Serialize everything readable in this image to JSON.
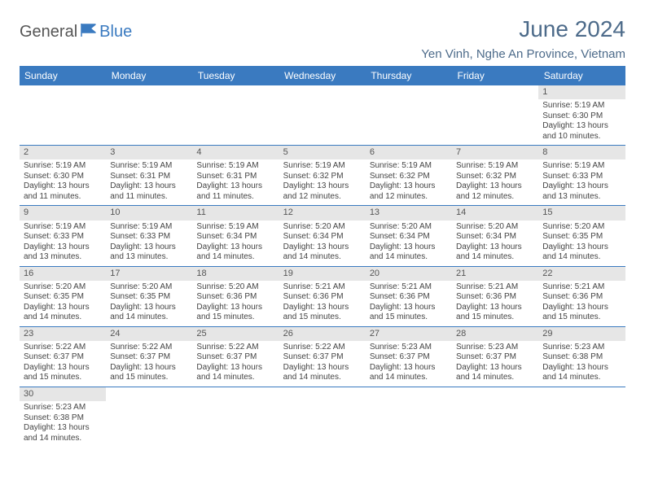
{
  "logo": {
    "text1": "General",
    "text2": "Blue"
  },
  "title": "June 2024",
  "location": "Yen Vinh, Nghe An Province, Vietnam",
  "colors": {
    "header_bg": "#3a7ac0",
    "header_fg": "#ffffff",
    "daynum_bg": "#e6e6e6",
    "daynum_fg": "#555555",
    "title_color": "#4d6b8a",
    "body_text": "#444444",
    "rule": "#3a7ac0"
  },
  "typography": {
    "title_fontsize": 28,
    "location_fontsize": 15,
    "dayheader_fontsize": 12,
    "daynum_fontsize": 11,
    "daybody_fontsize": 10
  },
  "day_headers": [
    "Sunday",
    "Monday",
    "Tuesday",
    "Wednesday",
    "Thursday",
    "Friday",
    "Saturday"
  ],
  "weeks": [
    [
      null,
      null,
      null,
      null,
      null,
      null,
      {
        "n": "1",
        "sr": "Sunrise: 5:19 AM",
        "ss": "Sunset: 6:30 PM",
        "dl": "Daylight: 13 hours and 10 minutes."
      }
    ],
    [
      {
        "n": "2",
        "sr": "Sunrise: 5:19 AM",
        "ss": "Sunset: 6:30 PM",
        "dl": "Daylight: 13 hours and 11 minutes."
      },
      {
        "n": "3",
        "sr": "Sunrise: 5:19 AM",
        "ss": "Sunset: 6:31 PM",
        "dl": "Daylight: 13 hours and 11 minutes."
      },
      {
        "n": "4",
        "sr": "Sunrise: 5:19 AM",
        "ss": "Sunset: 6:31 PM",
        "dl": "Daylight: 13 hours and 11 minutes."
      },
      {
        "n": "5",
        "sr": "Sunrise: 5:19 AM",
        "ss": "Sunset: 6:32 PM",
        "dl": "Daylight: 13 hours and 12 minutes."
      },
      {
        "n": "6",
        "sr": "Sunrise: 5:19 AM",
        "ss": "Sunset: 6:32 PM",
        "dl": "Daylight: 13 hours and 12 minutes."
      },
      {
        "n": "7",
        "sr": "Sunrise: 5:19 AM",
        "ss": "Sunset: 6:32 PM",
        "dl": "Daylight: 13 hours and 12 minutes."
      },
      {
        "n": "8",
        "sr": "Sunrise: 5:19 AM",
        "ss": "Sunset: 6:33 PM",
        "dl": "Daylight: 13 hours and 13 minutes."
      }
    ],
    [
      {
        "n": "9",
        "sr": "Sunrise: 5:19 AM",
        "ss": "Sunset: 6:33 PM",
        "dl": "Daylight: 13 hours and 13 minutes."
      },
      {
        "n": "10",
        "sr": "Sunrise: 5:19 AM",
        "ss": "Sunset: 6:33 PM",
        "dl": "Daylight: 13 hours and 13 minutes."
      },
      {
        "n": "11",
        "sr": "Sunrise: 5:19 AM",
        "ss": "Sunset: 6:34 PM",
        "dl": "Daylight: 13 hours and 14 minutes."
      },
      {
        "n": "12",
        "sr": "Sunrise: 5:20 AM",
        "ss": "Sunset: 6:34 PM",
        "dl": "Daylight: 13 hours and 14 minutes."
      },
      {
        "n": "13",
        "sr": "Sunrise: 5:20 AM",
        "ss": "Sunset: 6:34 PM",
        "dl": "Daylight: 13 hours and 14 minutes."
      },
      {
        "n": "14",
        "sr": "Sunrise: 5:20 AM",
        "ss": "Sunset: 6:34 PM",
        "dl": "Daylight: 13 hours and 14 minutes."
      },
      {
        "n": "15",
        "sr": "Sunrise: 5:20 AM",
        "ss": "Sunset: 6:35 PM",
        "dl": "Daylight: 13 hours and 14 minutes."
      }
    ],
    [
      {
        "n": "16",
        "sr": "Sunrise: 5:20 AM",
        "ss": "Sunset: 6:35 PM",
        "dl": "Daylight: 13 hours and 14 minutes."
      },
      {
        "n": "17",
        "sr": "Sunrise: 5:20 AM",
        "ss": "Sunset: 6:35 PM",
        "dl": "Daylight: 13 hours and 14 minutes."
      },
      {
        "n": "18",
        "sr": "Sunrise: 5:20 AM",
        "ss": "Sunset: 6:36 PM",
        "dl": "Daylight: 13 hours and 15 minutes."
      },
      {
        "n": "19",
        "sr": "Sunrise: 5:21 AM",
        "ss": "Sunset: 6:36 PM",
        "dl": "Daylight: 13 hours and 15 minutes."
      },
      {
        "n": "20",
        "sr": "Sunrise: 5:21 AM",
        "ss": "Sunset: 6:36 PM",
        "dl": "Daylight: 13 hours and 15 minutes."
      },
      {
        "n": "21",
        "sr": "Sunrise: 5:21 AM",
        "ss": "Sunset: 6:36 PM",
        "dl": "Daylight: 13 hours and 15 minutes."
      },
      {
        "n": "22",
        "sr": "Sunrise: 5:21 AM",
        "ss": "Sunset: 6:36 PM",
        "dl": "Daylight: 13 hours and 15 minutes."
      }
    ],
    [
      {
        "n": "23",
        "sr": "Sunrise: 5:22 AM",
        "ss": "Sunset: 6:37 PM",
        "dl": "Daylight: 13 hours and 15 minutes."
      },
      {
        "n": "24",
        "sr": "Sunrise: 5:22 AM",
        "ss": "Sunset: 6:37 PM",
        "dl": "Daylight: 13 hours and 15 minutes."
      },
      {
        "n": "25",
        "sr": "Sunrise: 5:22 AM",
        "ss": "Sunset: 6:37 PM",
        "dl": "Daylight: 13 hours and 14 minutes."
      },
      {
        "n": "26",
        "sr": "Sunrise: 5:22 AM",
        "ss": "Sunset: 6:37 PM",
        "dl": "Daylight: 13 hours and 14 minutes."
      },
      {
        "n": "27",
        "sr": "Sunrise: 5:23 AM",
        "ss": "Sunset: 6:37 PM",
        "dl": "Daylight: 13 hours and 14 minutes."
      },
      {
        "n": "28",
        "sr": "Sunrise: 5:23 AM",
        "ss": "Sunset: 6:37 PM",
        "dl": "Daylight: 13 hours and 14 minutes."
      },
      {
        "n": "29",
        "sr": "Sunrise: 5:23 AM",
        "ss": "Sunset: 6:38 PM",
        "dl": "Daylight: 13 hours and 14 minutes."
      }
    ],
    [
      {
        "n": "30",
        "sr": "Sunrise: 5:23 AM",
        "ss": "Sunset: 6:38 PM",
        "dl": "Daylight: 13 hours and 14 minutes."
      },
      null,
      null,
      null,
      null,
      null,
      null
    ]
  ]
}
